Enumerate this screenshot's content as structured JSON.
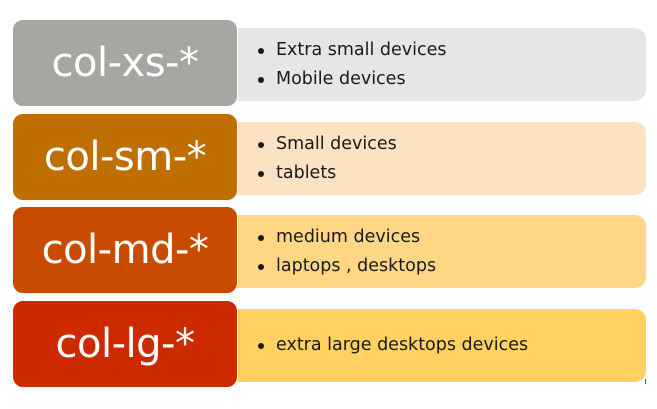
{
  "rows": [
    {
      "label": "col-xs-*",
      "label_color": "#A6A6A2",
      "panel_color": "#E7E6E6",
      "items": [
        "Extra small devices",
        "Mobile devices"
      ]
    },
    {
      "label": "col-sm-*",
      "label_color": "#BF6F00",
      "panel_color": "#FBE2C3",
      "items": [
        "Small devices",
        "tablets"
      ]
    },
    {
      "label": "col-md-*",
      "label_color": "#C94B00",
      "panel_color": "#FED684",
      "items": [
        "medium devices",
        "laptops , desktops"
      ]
    },
    {
      "label": "col-lg-*",
      "label_color": "#CE2A00",
      "panel_color": "#FFD160",
      "items": [
        "extra large desktops devices"
      ]
    }
  ]
}
